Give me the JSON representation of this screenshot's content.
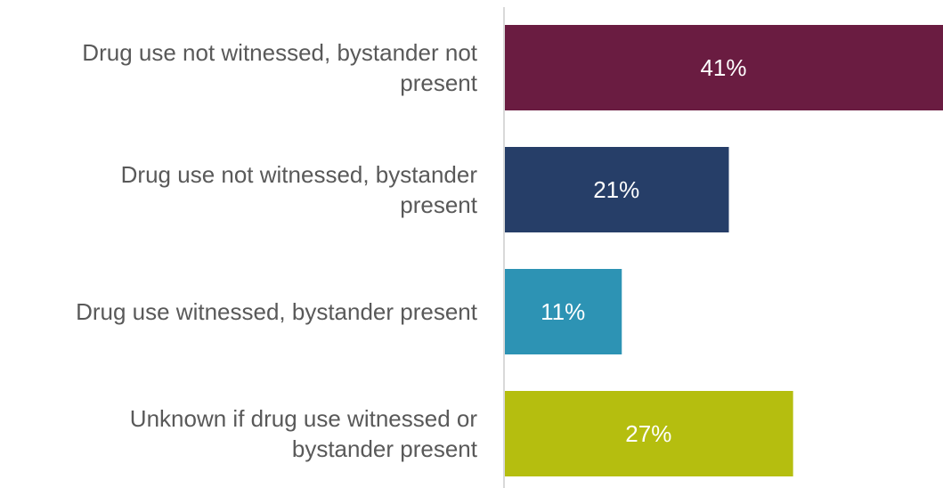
{
  "chart_data": {
    "type": "bar",
    "orientation": "horizontal",
    "categories": [
      [
        "Drug use not witnessed, bystander not",
        "present"
      ],
      [
        "Drug use not witnessed, bystander",
        "present"
      ],
      [
        "Drug use witnessed, bystander present"
      ],
      [
        "Unknown if drug use witnessed or",
        "bystander present"
      ]
    ],
    "values": [
      41,
      21,
      11,
      27
    ],
    "value_labels": [
      "41%",
      "21%",
      "11%",
      "27%"
    ],
    "unit": "%",
    "colors": [
      "#6a1c41",
      "#263e68",
      "#2d93b4",
      "#b5be0f"
    ],
    "axis_color": "#d9d9d9",
    "xlim": [
      0,
      41
    ],
    "grid": false,
    "legend": "none"
  }
}
